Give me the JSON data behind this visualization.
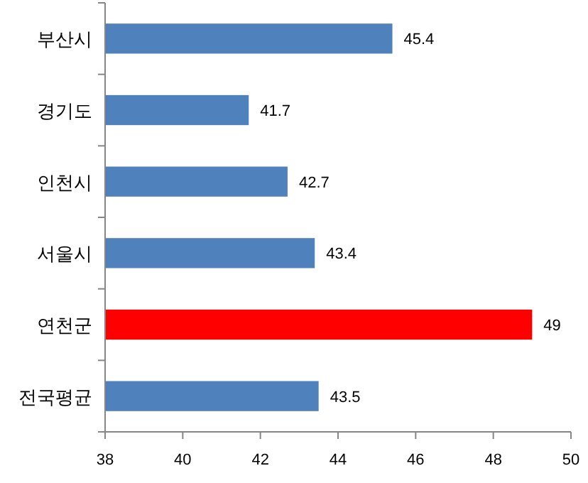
{
  "chart_data": {
    "type": "bar",
    "orientation": "horizontal",
    "categories": [
      "부산시",
      "경기도",
      "인천시",
      "서울시",
      "연천군",
      "전국평균"
    ],
    "values": [
      45.4,
      41.7,
      42.7,
      43.4,
      49,
      43.5
    ],
    "colors": [
      "#4f81bd",
      "#4f81bd",
      "#4f81bd",
      "#4f81bd",
      "#ff0000",
      "#4f81bd"
    ],
    "xlim": [
      38,
      50
    ],
    "xticks": [
      38,
      40,
      42,
      44,
      46,
      48,
      50
    ],
    "data_labels": true
  }
}
